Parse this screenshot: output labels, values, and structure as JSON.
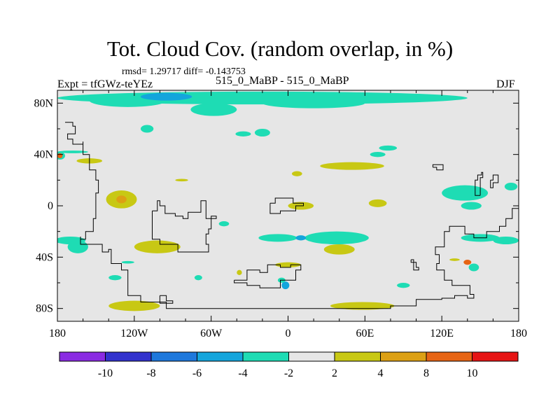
{
  "header": {
    "title": "Tot. Cloud Cov. (random overlap, in %)",
    "stats": "rmsd= 1.29717 diff= -0.143753",
    "left_label": "Expt = tfGWz-teYEz",
    "center_label": "515_0_MaBP - 515_0_MaBP",
    "right_label": "DJF"
  },
  "chart_data": {
    "type": "heatmap",
    "title": "Tot. Cloud Cov. (random overlap, in %)",
    "projection": "cylindrical equidistant",
    "xlim": [
      -180,
      180
    ],
    "ylim": [
      -90,
      90
    ],
    "x_ticks": [
      {
        "value": -180,
        "label": "180"
      },
      {
        "value": -120,
        "label": "120W"
      },
      {
        "value": -60,
        "label": "60W"
      },
      {
        "value": 0,
        "label": "0"
      },
      {
        "value": 60,
        "label": "60E"
      },
      {
        "value": 120,
        "label": "120E"
      },
      {
        "value": 180,
        "label": "180"
      }
    ],
    "y_ticks": [
      {
        "value": 80,
        "label": "80N"
      },
      {
        "value": 40,
        "label": "40N"
      },
      {
        "value": 0,
        "label": "0"
      },
      {
        "value": -40,
        "label": "40S"
      },
      {
        "value": -80,
        "label": "80S"
      }
    ],
    "background_color": "#e6e6e6",
    "colorbar": {
      "colors": [
        "#8a2be2",
        "#3232cd",
        "#1e78dc",
        "#14a5dc",
        "#1edcb4",
        "#e6e6e6",
        "#c8c814",
        "#dca014",
        "#e66414",
        "#e61414"
      ],
      "bounds": [
        -10,
        -8,
        -6,
        -4,
        -2,
        2,
        4,
        8,
        10
      ],
      "labels": [
        "-10",
        "-8",
        "-6",
        "-4",
        "-2",
        "2",
        "4",
        "8",
        "10"
      ]
    },
    "anomalies": [
      {
        "lon": -20,
        "lat": 84,
        "rx": 160,
        "ry": 5,
        "level": 4
      },
      {
        "lon": -125,
        "lat": 82,
        "rx": 30,
        "ry": 5,
        "level": 4
      },
      {
        "lon": -95,
        "lat": 85,
        "rx": 20,
        "ry": 3,
        "level": 3
      },
      {
        "lon": -110,
        "lat": 60,
        "rx": 5,
        "ry": 3,
        "level": 4
      },
      {
        "lon": -58,
        "lat": 75,
        "rx": 18,
        "ry": 5,
        "level": 4
      },
      {
        "lon": 20,
        "lat": 80,
        "rx": 40,
        "ry": 4,
        "level": 4
      },
      {
        "lon": -35,
        "lat": 56,
        "rx": 6,
        "ry": 2,
        "level": 4
      },
      {
        "lon": -20,
        "lat": 57,
        "rx": 6,
        "ry": 3,
        "level": 4
      },
      {
        "lon": 78,
        "lat": 45,
        "rx": 7,
        "ry": 2,
        "level": 4
      },
      {
        "lon": 70,
        "lat": 40,
        "rx": 6,
        "ry": 2,
        "level": 4
      },
      {
        "lon": 50,
        "lat": 31,
        "rx": 25,
        "ry": 3,
        "level": 6
      },
      {
        "lon": 7,
        "lat": 25,
        "rx": 4,
        "ry": 2,
        "level": 6
      },
      {
        "lon": 10,
        "lat": 0,
        "rx": 10,
        "ry": 3,
        "level": 6
      },
      {
        "lon": 70,
        "lat": 2,
        "rx": 7,
        "ry": 3,
        "level": 6
      },
      {
        "lon": -130,
        "lat": 5,
        "rx": 12,
        "ry": 7,
        "level": 6
      },
      {
        "lon": -130,
        "lat": 5,
        "rx": 4,
        "ry": 3,
        "level": 7
      },
      {
        "lon": -102,
        "lat": -32,
        "rx": 18,
        "ry": 5,
        "level": 6
      },
      {
        "lon": -83,
        "lat": 20,
        "rx": 5,
        "ry": 1,
        "level": 6
      },
      {
        "lon": -8,
        "lat": -25,
        "rx": 15,
        "ry": 3,
        "level": 4
      },
      {
        "lon": 38,
        "lat": -25,
        "rx": 25,
        "ry": 5,
        "level": 4
      },
      {
        "lon": 10,
        "lat": -25,
        "rx": 4,
        "ry": 2,
        "level": 3
      },
      {
        "lon": 40,
        "lat": -34,
        "rx": 12,
        "ry": 4,
        "level": 6
      },
      {
        "lon": 0,
        "lat": -46,
        "rx": 10,
        "ry": 2,
        "level": 6
      },
      {
        "lon": -170,
        "lat": -27,
        "rx": 12,
        "ry": 3,
        "level": 4
      },
      {
        "lon": -164,
        "lat": -32,
        "rx": 8,
        "ry": 5,
        "level": 4
      },
      {
        "lon": -178,
        "lat": 39,
        "rx": 4,
        "ry": 3,
        "level": 4
      },
      {
        "lon": -178,
        "lat": 39,
        "rx": 2,
        "ry": 2,
        "level": 8
      },
      {
        "lon": -155,
        "lat": 35,
        "rx": 10,
        "ry": 2,
        "level": 6
      },
      {
        "lon": -168,
        "lat": 42,
        "rx": 12,
        "ry": 1,
        "level": 4
      },
      {
        "lon": -50,
        "lat": -14,
        "rx": 4,
        "ry": 2,
        "level": 4
      },
      {
        "lon": 138,
        "lat": 10,
        "rx": 18,
        "ry": 6,
        "level": 4
      },
      {
        "lon": 143,
        "lat": 0,
        "rx": 8,
        "ry": 3,
        "level": 4
      },
      {
        "lon": 174,
        "lat": 15,
        "rx": 5,
        "ry": 3,
        "level": 4
      },
      {
        "lon": 140,
        "lat": -44,
        "rx": 3,
        "ry": 2,
        "level": 8
      },
      {
        "lon": 130,
        "lat": -42,
        "rx": 4,
        "ry": 1,
        "level": 6
      },
      {
        "lon": 145,
        "lat": -48,
        "rx": 4,
        "ry": 3,
        "level": 4
      },
      {
        "lon": 150,
        "lat": -25,
        "rx": 15,
        "ry": 3,
        "level": 4
      },
      {
        "lon": 170,
        "lat": -27,
        "rx": 10,
        "ry": 3,
        "level": 4
      },
      {
        "lon": -135,
        "lat": -56,
        "rx": 5,
        "ry": 2,
        "level": 4
      },
      {
        "lon": -120,
        "lat": -78,
        "rx": 20,
        "ry": 4,
        "level": 6
      },
      {
        "lon": -125,
        "lat": -44,
        "rx": 5,
        "ry": 1,
        "level": 4
      },
      {
        "lon": 58,
        "lat": -78,
        "rx": 25,
        "ry": 3,
        "level": 6
      },
      {
        "lon": 90,
        "lat": -62,
        "rx": 5,
        "ry": 2,
        "level": 4
      },
      {
        "lon": -70,
        "lat": -56,
        "rx": 3,
        "ry": 2,
        "level": 4
      },
      {
        "lon": -38,
        "lat": -52,
        "rx": 2,
        "ry": 2,
        "level": 6
      },
      {
        "lon": -2,
        "lat": -62,
        "rx": 3,
        "ry": 3,
        "level": 3
      },
      {
        "lon": -5,
        "lat": -58,
        "rx": 3,
        "ry": 2,
        "level": 4
      }
    ],
    "coastlines": [
      [
        [
          -174,
          65
        ],
        [
          -168,
          62
        ],
        [
          -166,
          56
        ],
        [
          -172,
          52
        ],
        [
          -168,
          48
        ],
        [
          -160,
          50
        ],
        [
          -160,
          40
        ],
        [
          -155,
          28
        ],
        [
          -150,
          20
        ],
        [
          -148,
          10
        ],
        [
          -150,
          0
        ],
        [
          -150,
          -10
        ],
        [
          -152,
          -20
        ],
        [
          -158,
          -26
        ],
        [
          -162,
          -24
        ],
        [
          -162,
          -30
        ],
        [
          -148,
          -30
        ],
        [
          -145,
          -36
        ],
        [
          -140,
          -34
        ],
        [
          -138,
          -45
        ],
        [
          -130,
          -50
        ],
        [
          -125,
          -55
        ],
        [
          -125,
          -70
        ],
        [
          -115,
          -75
        ],
        [
          -100,
          -75
        ],
        [
          -95,
          -80
        ],
        [
          -62,
          -80
        ],
        [
          -10,
          -80
        ],
        [
          40,
          -80
        ],
        [
          80,
          -78
        ],
        [
          100,
          -73
        ],
        [
          120,
          -72
        ],
        [
          130,
          -70
        ],
        [
          135,
          -70
        ],
        [
          140,
          -72
        ],
        [
          145,
          -69
        ],
        [
          142,
          -62
        ],
        [
          134,
          -62
        ],
        [
          128,
          -58
        ],
        [
          122,
          -50
        ],
        [
          116,
          -45
        ],
        [
          118,
          -38
        ],
        [
          115,
          -32
        ],
        [
          122,
          -29
        ],
        [
          122,
          -20
        ],
        [
          126,
          -16
        ],
        [
          132,
          -16
        ],
        [
          138,
          -22
        ],
        [
          145,
          -25
        ],
        [
          150,
          -25
        ],
        [
          155,
          -20
        ],
        [
          165,
          -16
        ],
        [
          170,
          -10
        ],
        [
          175,
          -2
        ],
        [
          180,
          5
        ]
      ],
      [
        [
          -106,
          -4
        ],
        [
          -102,
          4
        ],
        [
          -100,
          0
        ],
        [
          -96,
          0
        ],
        [
          -96,
          -6
        ],
        [
          -88,
          -8
        ],
        [
          -82,
          -10
        ],
        [
          -78,
          -5
        ],
        [
          -68,
          4
        ],
        [
          -64,
          2
        ],
        [
          -64,
          -10
        ],
        [
          -56,
          -8
        ],
        [
          -60,
          -18
        ],
        [
          -62,
          -22
        ],
        [
          -64,
          -30
        ],
        [
          -62,
          -36
        ],
        [
          -70,
          -36
        ],
        [
          -82,
          -36
        ],
        [
          -86,
          -30
        ],
        [
          -100,
          -26
        ],
        [
          -106,
          -10
        ],
        [
          -106,
          -4
        ]
      ],
      [
        [
          -42,
          -58
        ],
        [
          -32,
          -50
        ],
        [
          -22,
          -52
        ],
        [
          -16,
          -46
        ],
        [
          -6,
          -48
        ],
        [
          2,
          -46
        ],
        [
          10,
          -50
        ],
        [
          6,
          -58
        ],
        [
          -6,
          -64
        ],
        [
          -22,
          -62
        ],
        [
          -32,
          -60
        ],
        [
          -42,
          -58
        ]
      ],
      [
        [
          -14,
          2
        ],
        [
          -10,
          6
        ],
        [
          0,
          6
        ],
        [
          4,
          2
        ],
        [
          10,
          2
        ],
        [
          12,
          0
        ],
        [
          6,
          -4
        ],
        [
          -6,
          -6
        ],
        [
          -14,
          -4
        ],
        [
          -14,
          2
        ]
      ],
      [
        [
          -100,
          -70
        ],
        [
          -95,
          -74
        ],
        [
          -90,
          -74
        ],
        [
          -90,
          -76
        ],
        [
          -100,
          -76
        ],
        [
          -100,
          -70
        ]
      ],
      [
        [
          113,
          30
        ],
        [
          116,
          28
        ],
        [
          121,
          30
        ],
        [
          121,
          32
        ],
        [
          116,
          32
        ],
        [
          113,
          30
        ]
      ],
      [
        [
          96,
          -42
        ],
        [
          98,
          -44
        ],
        [
          98,
          -50
        ],
        [
          102,
          -48
        ],
        [
          100,
          -44
        ],
        [
          96,
          -42
        ]
      ],
      [
        [
          150,
          8
        ],
        [
          146,
          20
        ],
        [
          148,
          24
        ],
        [
          151,
          26
        ],
        [
          152,
          22
        ],
        [
          150,
          10
        ],
        [
          150,
          8
        ]
      ],
      [
        [
          158,
          20
        ],
        [
          160,
          24
        ],
        [
          164,
          18
        ],
        [
          160,
          14
        ],
        [
          158,
          20
        ]
      ]
    ]
  }
}
